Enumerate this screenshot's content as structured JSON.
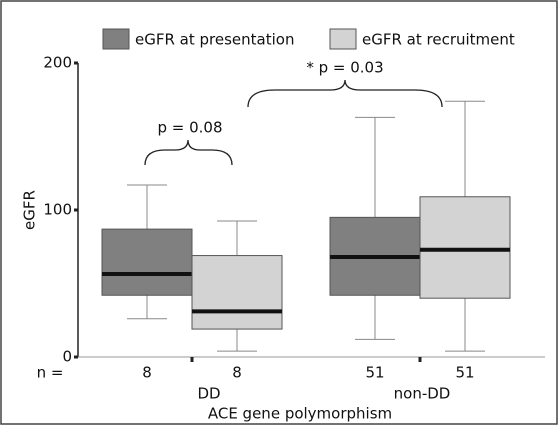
{
  "chart_data": {
    "type": "box",
    "y_label": "eGFR",
    "x_label": "ACE gene polymorphism",
    "categories": [
      "DD",
      "non-DD"
    ],
    "series": [
      {
        "name": "eGFR at presentation",
        "color": "#808080",
        "boxes": [
          {
            "min": 26,
            "q1": 42,
            "median": 56.5,
            "q3": 87,
            "max": 117
          },
          {
            "min": 12,
            "q1": 42,
            "median": 68,
            "q3": 95,
            "max": 163
          }
        ],
        "n": [
          8,
          51
        ]
      },
      {
        "name": "eGFR at recruitment",
        "color": "#d3d3d3",
        "boxes": [
          {
            "min": 4,
            "q1": 19,
            "median": 31,
            "q3": 69,
            "max": 92.5
          },
          {
            "min": 4,
            "q1": 40,
            "median": 73,
            "q3": 109,
            "max": 174
          }
        ],
        "n": [
          8,
          51
        ]
      }
    ],
    "n_label": "n =",
    "annotations": [
      "p = 0.08",
      "* p = 0.03"
    ],
    "ylim": [
      0,
      200
    ],
    "yticks": [
      0,
      100,
      200
    ]
  }
}
